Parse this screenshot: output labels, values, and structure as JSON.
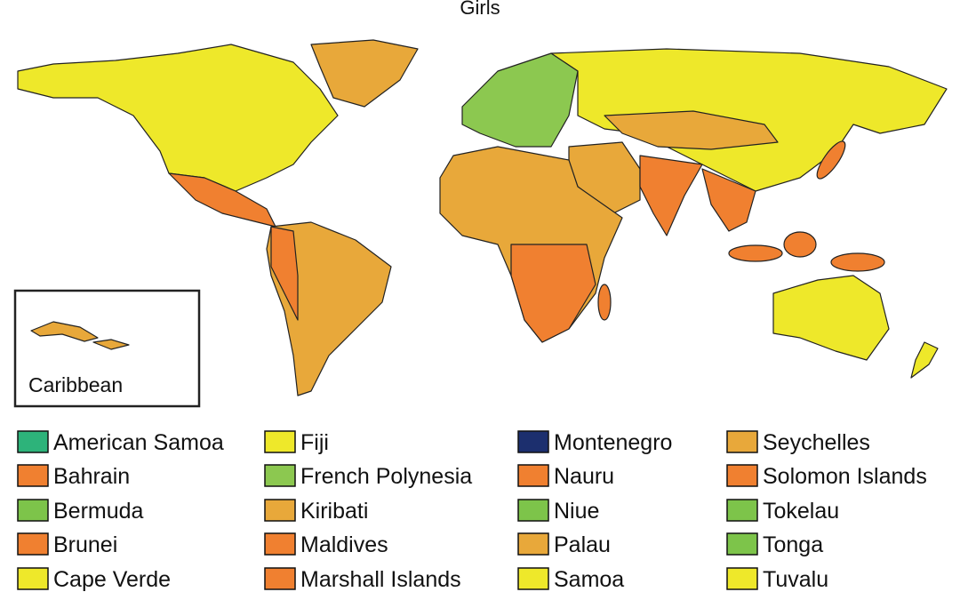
{
  "title": "Girls",
  "inset_label": "Caribbean",
  "legend": {
    "items": [
      {
        "label": "American Samoa",
        "color": "#2db37a"
      },
      {
        "label": "Bahrain",
        "color": "#f08030"
      },
      {
        "label": "Bermuda",
        "color": "#7dc44a"
      },
      {
        "label": "Brunei",
        "color": "#f08030"
      },
      {
        "label": "Cape Verde",
        "color": "#eee82a"
      },
      {
        "label": "Fiji",
        "color": "#eee82a"
      },
      {
        "label": "French Polynesia",
        "color": "#8cc850"
      },
      {
        "label": "Kiribati",
        "color": "#e8a83a"
      },
      {
        "label": "Maldives",
        "color": "#f08030"
      },
      {
        "label": "Marshall Islands",
        "color": "#f08030"
      },
      {
        "label": "Montenegro",
        "color": "#1c2f6e"
      },
      {
        "label": "Nauru",
        "color": "#f08030"
      },
      {
        "label": "Niue",
        "color": "#7dc44a"
      },
      {
        "label": "Palau",
        "color": "#e8a83a"
      },
      {
        "label": "Samoa",
        "color": "#eee82a"
      },
      {
        "label": "Seychelles",
        "color": "#e8a83a"
      },
      {
        "label": "Solomon Islands",
        "color": "#f08030"
      },
      {
        "label": "Tokelau",
        "color": "#7dc44a"
      },
      {
        "label": "Tonga",
        "color": "#7dc44a"
      },
      {
        "label": "Tuvalu",
        "color": "#eee82a"
      }
    ]
  }
}
